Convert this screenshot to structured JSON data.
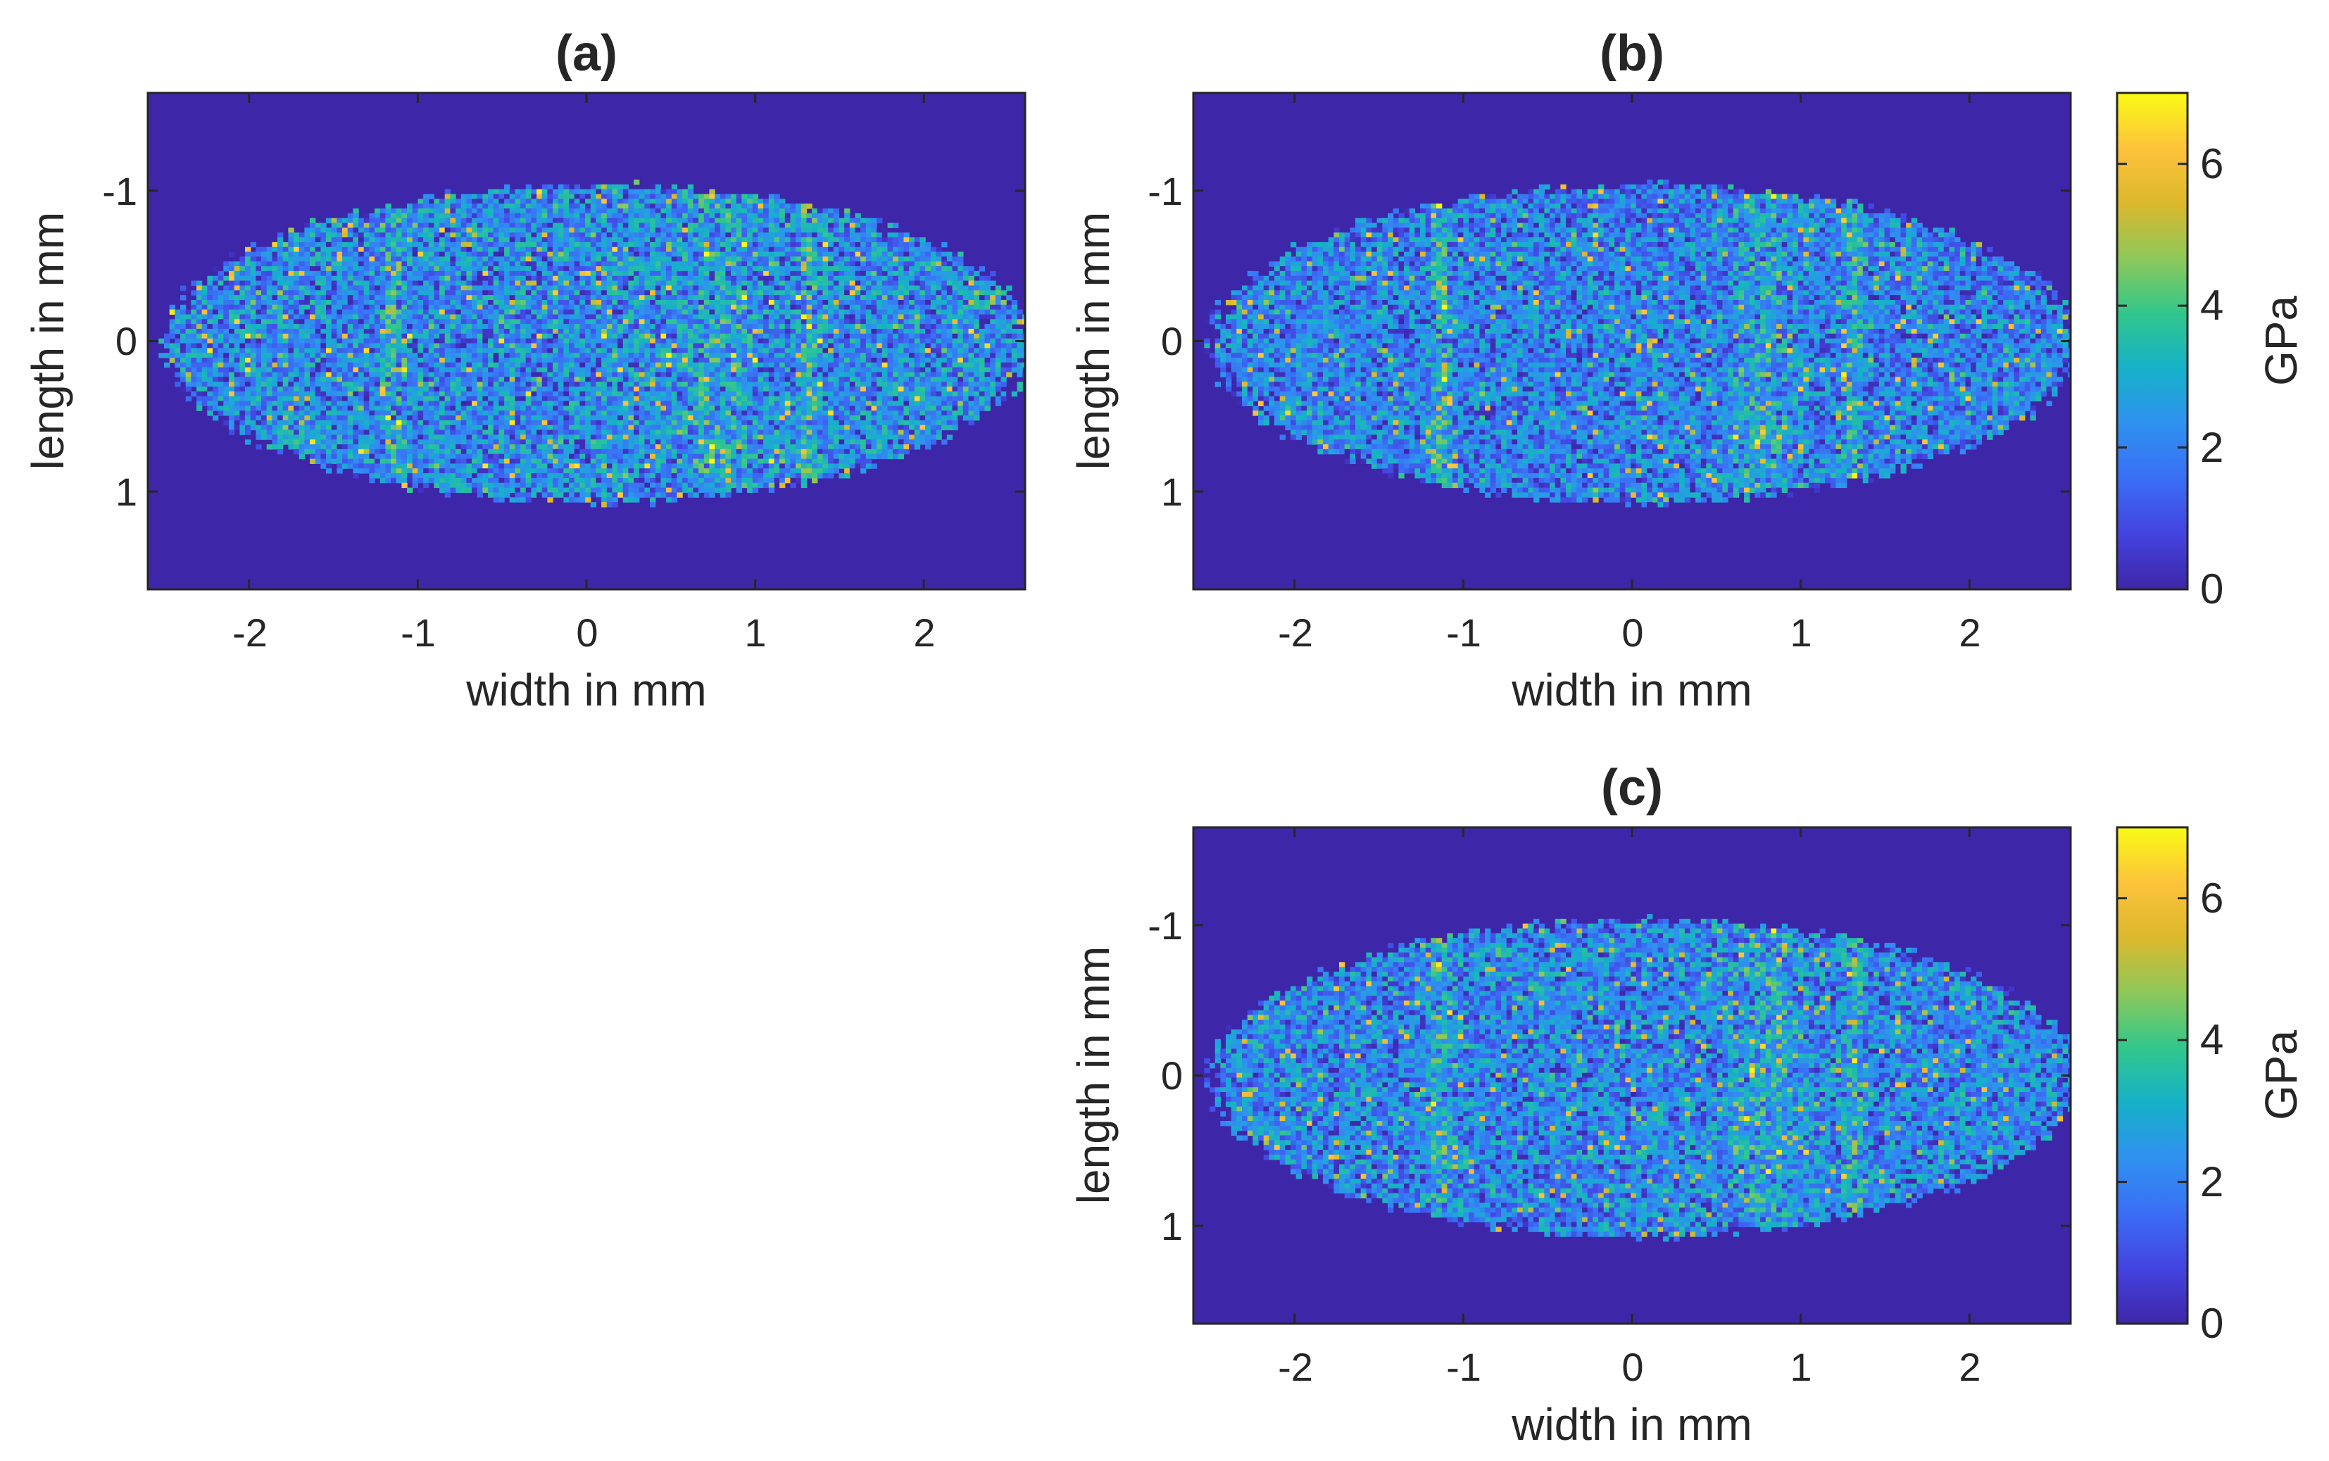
{
  "chart_data": [
    {
      "type": "heatmap",
      "title": "(a)",
      "xlabel": "width in mm",
      "ylabel": "length in mm",
      "xlim": [
        -2.6,
        2.6
      ],
      "ylim": [
        -1.65,
        1.65
      ],
      "y_reversed": true,
      "xticks": [
        -2,
        -1,
        0,
        1,
        2
      ],
      "xtick_labels": [
        "-2",
        "-1",
        "0",
        "1",
        "2"
      ],
      "yticks": [
        -1,
        0,
        1
      ],
      "ytick_labels": [
        "-1",
        "0",
        "1"
      ],
      "value_range": [
        0,
        7
      ],
      "colormap": "parula",
      "background_value": 0,
      "region": {
        "shape": "ellipse",
        "center": [
          0.05,
          0.0
        ],
        "semi_axis_width": 2.55,
        "semi_axis_length": 1.05
      },
      "typical_value": 2.5,
      "peak_value": 6.8
    },
    {
      "type": "heatmap",
      "title": "(b)",
      "xlabel": "width in mm",
      "ylabel": "length in mm",
      "xlim": [
        -2.6,
        2.6
      ],
      "ylim": [
        -1.65,
        1.65
      ],
      "y_reversed": true,
      "xticks": [
        -2,
        -1,
        0,
        1,
        2
      ],
      "xtick_labels": [
        "-2",
        "-1",
        "0",
        "1",
        "2"
      ],
      "yticks": [
        -1,
        0,
        1
      ],
      "ytick_labels": [
        "-1",
        "0",
        "1"
      ],
      "value_range": [
        0,
        7
      ],
      "colormap": "parula",
      "background_value": 0,
      "region": {
        "shape": "ellipse",
        "center": [
          0.05,
          0.0
        ],
        "semi_axis_width": 2.55,
        "semi_axis_length": 1.05
      },
      "typical_value": 2.3,
      "peak_value": 6.5,
      "colorbar": {
        "label": "GPa",
        "ticks": [
          "0",
          "2",
          "4",
          "6"
        ],
        "range": [
          0,
          7
        ]
      }
    },
    {
      "type": "heatmap",
      "title": "(c)",
      "xlabel": "width in mm",
      "ylabel": "length in mm",
      "xlim": [
        -2.6,
        2.6
      ],
      "ylim": [
        -1.65,
        1.65
      ],
      "y_reversed": true,
      "xticks": [
        -2,
        -1,
        0,
        1,
        2
      ],
      "xtick_labels": [
        "-2",
        "-1",
        "0",
        "1",
        "2"
      ],
      "yticks": [
        -1,
        0,
        1
      ],
      "ytick_labels": [
        "-1",
        "0",
        "1"
      ],
      "value_range": [
        0,
        7
      ],
      "colormap": "parula",
      "background_value": 0,
      "region": {
        "shape": "ellipse",
        "center": [
          0.05,
          0.0
        ],
        "semi_axis_width": 2.55,
        "semi_axis_length": 1.05
      },
      "typical_value": 2.4,
      "peak_value": 6.3,
      "colorbar": {
        "label": "GPa",
        "ticks": [
          "0",
          "2",
          "4",
          "6"
        ],
        "range": [
          0,
          7
        ]
      }
    }
  ],
  "colormap_stops": [
    "#3e26a8",
    "#4443e0",
    "#3a6ef5",
    "#2f91f0",
    "#16b1c9",
    "#31c78c",
    "#8ec85a",
    "#dcb82c",
    "#fdc33b",
    "#f9fb15"
  ]
}
